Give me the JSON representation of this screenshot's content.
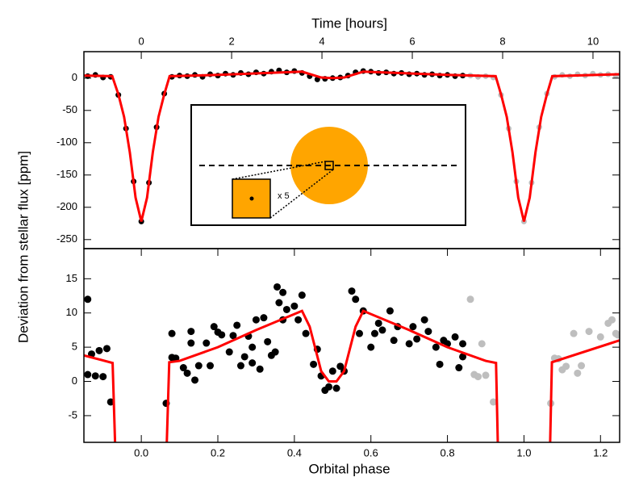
{
  "chart_data": [
    {
      "type": "scatter",
      "x2label": "Time [hours]",
      "ylabel": "Deviation from stellar flux [ppm]",
      "inset_label": "x 5",
      "xlim": [
        -0.15,
        1.25
      ],
      "x2lim": [
        -1.27,
        10.59
      ],
      "x2ticks": [
        0,
        2,
        4,
        6,
        8,
        10
      ],
      "ylim": [
        -264,
        41
      ],
      "yticks": [
        0,
        -50,
        -100,
        -150,
        -200,
        -250
      ],
      "series": [
        {
          "color": "#000000",
          "x": [
            -0.14,
            -0.12,
            -0.1,
            -0.08,
            -0.06,
            -0.04,
            -0.02,
            0,
            0.02,
            0.04,
            0.06,
            0.08,
            0.1,
            0.12,
            0.14,
            0.16,
            0.18,
            0.2,
            0.22,
            0.24,
            0.26,
            0.28,
            0.3,
            0.32,
            0.34,
            0.36,
            0.38,
            0.4,
            0.42,
            0.44,
            0.46,
            0.48,
            0.5,
            0.52,
            0.54,
            0.56,
            0.58,
            0.6,
            0.62,
            0.64,
            0.66,
            0.68,
            0.7,
            0.72,
            0.74,
            0.76,
            0.78,
            0.8,
            0.82,
            0.84
          ],
          "values": [
            3,
            5,
            1,
            2,
            -26,
            -78,
            -160,
            -222,
            -162,
            -76,
            -24,
            2,
            4,
            3,
            5,
            2,
            6,
            4,
            7,
            5,
            8,
            6,
            9,
            7,
            10,
            12,
            9,
            11,
            8,
            3,
            -2,
            -1,
            0,
            1,
            4,
            9,
            11,
            10,
            8,
            9,
            7,
            8,
            6,
            7,
            5,
            6,
            4,
            5,
            3,
            4
          ]
        },
        {
          "color": "#bebebe",
          "x": [
            0.86,
            0.88,
            0.9,
            0.92,
            0.94,
            0.96,
            0.98,
            1.0,
            1.02,
            1.04,
            1.06,
            1.08,
            1.1,
            1.12,
            1.14,
            1.16,
            1.18,
            1.2,
            1.22,
            1.24
          ],
          "values": [
            4,
            2,
            3,
            1,
            -26,
            -78,
            -160,
            -222,
            -162,
            -76,
            -24,
            2,
            5,
            3,
            6,
            4,
            7,
            5,
            6,
            4
          ]
        },
        {
          "type": "line",
          "color": "#ff0000",
          "x": [
            -0.15,
            -0.076,
            -0.06,
            -0.045,
            -0.03,
            -0.015,
            0,
            0.015,
            0.03,
            0.045,
            0.06,
            0.074,
            0.2,
            0.42,
            0.47,
            0.5,
            0.53,
            0.58,
            0.8,
            0.926,
            0.94,
            0.955,
            0.97,
            0.985,
            1.0,
            1.015,
            1.03,
            1.045,
            1.06,
            1.074,
            1.25
          ],
          "values": [
            4,
            3,
            -25,
            -60,
            -115,
            -185,
            -222,
            -185,
            -115,
            -60,
            -25,
            3,
            5,
            10,
            1,
            0,
            1,
            10,
            5,
            3,
            -25,
            -60,
            -115,
            -185,
            -222,
            -185,
            -115,
            -60,
            -25,
            3,
            6
          ]
        }
      ]
    },
    {
      "type": "scatter",
      "xlabel": "Orbital phase",
      "xlim": [
        -0.15,
        1.25
      ],
      "xticks": [
        {
          "value": 0,
          "label": "0.0"
        },
        0.2,
        0.4,
        0.6,
        0.8,
        {
          "value": 1,
          "label": "1.0"
        },
        1.2
      ],
      "ylim": [
        -8.9,
        19.4
      ],
      "yticks": [
        -5,
        0,
        5,
        10,
        15
      ],
      "series": [
        {
          "color": "#000000",
          "x": [
            -0.14,
            -0.13,
            -0.11,
            -0.14,
            -0.12,
            -0.1,
            -0.09,
            -0.08,
            0.065,
            0.08,
            0.08,
            0.09,
            0.11,
            0.12,
            0.13,
            0.14,
            0.15,
            0.13,
            0.17,
            0.19,
            0.2,
            0.18,
            0.21,
            0.23,
            0.24,
            0.26,
            0.25,
            0.27,
            0.29,
            0.29,
            0.28,
            0.31,
            0.3,
            0.32,
            0.34,
            0.33,
            0.35,
            0.36,
            0.37,
            0.355,
            0.37,
            0.38,
            0.4,
            0.41,
            0.42,
            0.43,
            0.45,
            0.46,
            0.47,
            0.48,
            0.49,
            0.5,
            0.51,
            0.52,
            0.53,
            0.55,
            0.56,
            0.57,
            0.58,
            0.6,
            0.61,
            0.62,
            0.63,
            0.65,
            0.66,
            0.67,
            0.7,
            0.71,
            0.72,
            0.74,
            0.75,
            0.77,
            0.78,
            0.79,
            0.8,
            0.82,
            0.83,
            0.84,
            0.84
          ],
          "values": [
            12,
            4,
            4.5,
            1,
            0.8,
            0.7,
            4.8,
            -3,
            -3.2,
            7,
            3.5,
            3.4,
            2,
            1.2,
            7.3,
            0.2,
            2.3,
            5.6,
            5.6,
            8,
            7.2,
            2.3,
            6.8,
            4.3,
            6.7,
            2.3,
            8.2,
            3.6,
            2.7,
            5,
            6.6,
            1.8,
            9,
            9.3,
            3.8,
            5.8,
            4.3,
            11.5,
            9,
            13.8,
            13,
            10.5,
            11,
            9,
            12.6,
            7,
            2.5,
            4.7,
            0.8,
            -1.3,
            -0.8,
            1.5,
            -1,
            2.2,
            1.5,
            13.2,
            12,
            7,
            10.3,
            5,
            7,
            8.5,
            7.5,
            10.3,
            6,
            8,
            5.5,
            8,
            6.2,
            9,
            7.3,
            5,
            2.5,
            6,
            5.5,
            6.5,
            2,
            3.6,
            5.5
          ]
        },
        {
          "color": "#bebebe",
          "x": [
            0.86,
            0.87,
            0.88,
            0.89,
            0.9,
            0.92,
            1.07,
            1.08,
            1.09,
            1.1,
            1.11,
            1.14,
            1.15,
            1.13,
            1.17,
            1.2,
            1.22,
            1.23,
            1.24,
            1.245
          ],
          "values": [
            12,
            1,
            0.7,
            5.5,
            0.9,
            -3,
            -3.2,
            3.4,
            3.3,
            1.7,
            2.2,
            1.2,
            2.3,
            7,
            7.3,
            6.5,
            8.5,
            9,
            7,
            6.8
          ]
        },
        {
          "type": "line",
          "color": "#ff0000",
          "x": [
            -0.15,
            -0.075,
            -0.068,
            null,
            0.066,
            0.073,
            0.1,
            0.2,
            0.3,
            0.42,
            0.44,
            0.47,
            0.49,
            0.51,
            0.53,
            0.56,
            0.58,
            0.7,
            0.8,
            0.9,
            0.927,
            0.932,
            null,
            1.068,
            1.073,
            1.25
          ],
          "values": [
            3.8,
            2.7,
            -10,
            null,
            -10,
            2.8,
            3,
            5,
            7.5,
            10.3,
            8,
            1.5,
            0,
            0,
            1.5,
            8,
            10.3,
            7.5,
            5,
            3,
            2.7,
            -10,
            null,
            -10,
            2.8,
            6
          ]
        }
      ]
    }
  ]
}
